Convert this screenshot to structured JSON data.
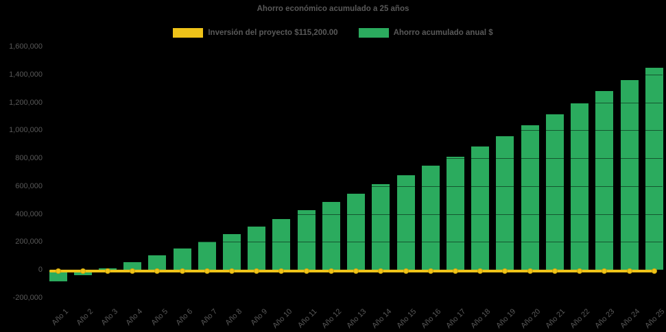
{
  "page": {
    "background": "#000000",
    "text_color": "#595959"
  },
  "chart_data": {
    "type": "bar",
    "title": "Ahorro económico acumulado a 25 años",
    "categories": [
      "Año 1",
      "Año 2",
      "Año 3",
      "Año 4",
      "Año 5",
      "Año 6",
      "Año 7",
      "Año 8",
      "Año 9",
      "Año 10",
      "Año 11",
      "Año 12",
      "Año 13",
      "Año 14",
      "Año 15",
      "Año 16",
      "Año 17",
      "Año 18",
      "Año 19",
      "Año 20",
      "Año 21",
      "Año 22",
      "Año 23",
      "Año 24",
      "Año 25"
    ],
    "series": [
      {
        "name": "Inversión del proyecto $115,200.00",
        "type": "line",
        "color": "#EFC319",
        "marker": "circle",
        "values": [
          0,
          0,
          0,
          0,
          0,
          0,
          0,
          0,
          0,
          0,
          0,
          0,
          0,
          0,
          0,
          0,
          0,
          0,
          0,
          0,
          0,
          0,
          0,
          0,
          0
        ]
      },
      {
        "name": "Ahorro acumulado anual $",
        "type": "bar",
        "color": "#2BAB5E",
        "values": [
          -85000,
          -38000,
          8000,
          55000,
          105000,
          152000,
          201000,
          256000,
          308000,
          365000,
          427000,
          488000,
          546000,
          613000,
          678000,
          745000,
          812000,
          884000,
          957000,
          1035000,
          1113000,
          1193000,
          1280000,
          1359000,
          1446000
        ]
      }
    ],
    "xlabel": "",
    "ylabel": "",
    "ylim": [
      -200000,
      1600000
    ],
    "ytick_step": 200000,
    "ytick_labels": [
      "-200,000",
      "0",
      "200,000",
      "400,000",
      "600,000",
      "800,000",
      "1,000,000",
      "1,200,000",
      "1,400,000",
      "1,600,000"
    ],
    "legend_position": "top",
    "grid": false
  }
}
